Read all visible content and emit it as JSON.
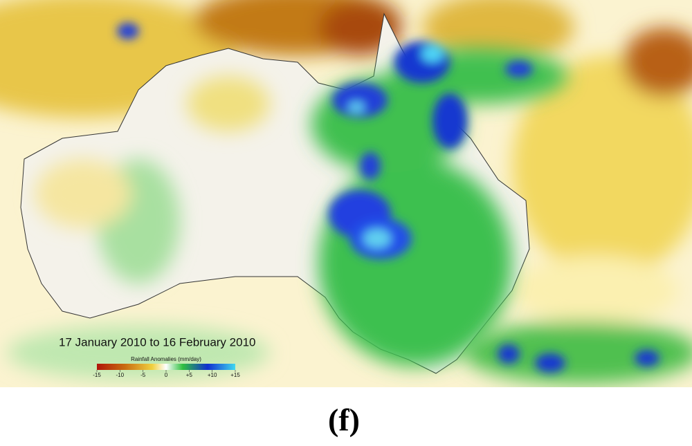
{
  "map": {
    "period": "17 January 2010 to 16 February 2010",
    "legend": {
      "title": "Rainfall Anomalies (mm/day)",
      "ticks": [
        -15,
        -10,
        {
          "value": -5,
          "label": "-5"
        },
        0,
        {
          "value": 5,
          "label": "+5"
        },
        {
          "value": 10,
          "label": "+10"
        },
        {
          "value": 15,
          "label": "+15"
        }
      ]
    }
  },
  "caption": "(f)"
}
